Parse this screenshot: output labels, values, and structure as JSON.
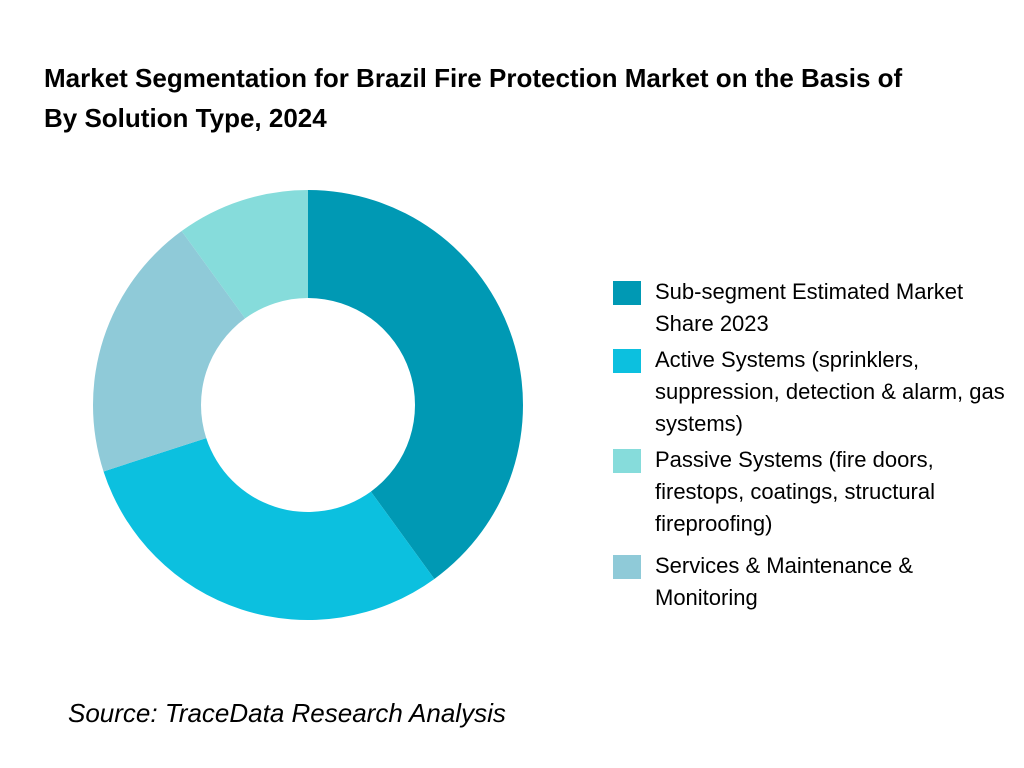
{
  "chart_data": {
    "type": "donut",
    "title": "Market Segmentation for Brazil Fire Protection Market on the Basis of  By Solution Type, 2024",
    "categories": [
      "Sub-segment  Estimated Market Share 2023",
      "Active Systems (sprinklers, suppression, detection & alarm, gas systems)",
      "Passive Systems (fire doors, firestops, coatings, structural fireproofing)",
      "Services & Maintenance & Monitoring"
    ],
    "values": [
      40,
      30,
      10,
      20
    ],
    "colors": [
      "#0099b4",
      "#0cc0df",
      "#86dcdb",
      "#8fcad8"
    ],
    "source": "Source: TraceData Research Analysis"
  }
}
